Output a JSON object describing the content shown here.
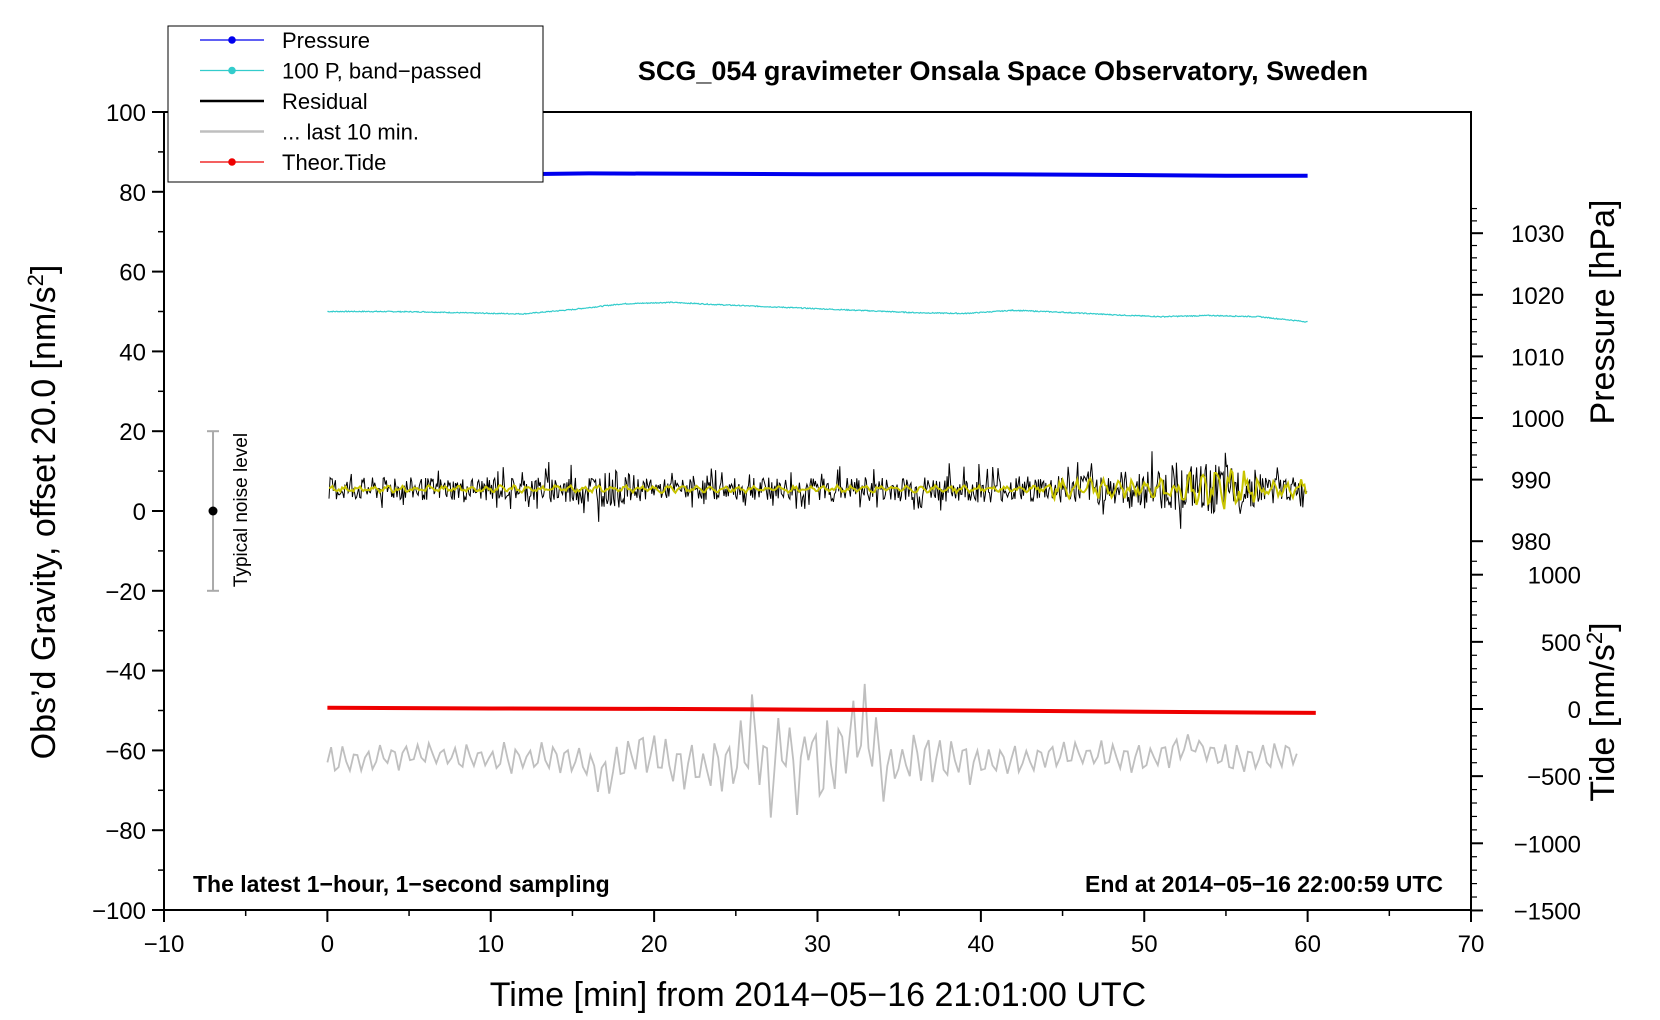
{
  "chart_data": {
    "type": "line",
    "title": "SCG_054 gravimeter Onsala Space Observatory, Sweden",
    "xlabel": "Time [min] from 2014−05−16 21:01:00 UTC",
    "ylabel_main": "Obs’d Gravity, offset 20.0 [nm/s",
    "ylabel_main_sup": "2",
    "ylabel_main_end": "]",
    "ylabel_pressure": "Pressure [hPa]",
    "ylabel_tide": "Tide [nm/s",
    "ylabel_tide_sup": "2",
    "ylabel_tide_end": "]",
    "xlim": [
      -10,
      70
    ],
    "ylim": [
      -100,
      100
    ],
    "x_ticks": [
      -10,
      0,
      10,
      20,
      30,
      40,
      50,
      60,
      70
    ],
    "x_tick_labels": [
      "−10",
      "0",
      "10",
      "20",
      "30",
      "40",
      "50",
      "60",
      "70"
    ],
    "y_ticks": [
      -100,
      -80,
      -60,
      -40,
      -20,
      0,
      20,
      40,
      60,
      80,
      100
    ],
    "y_tick_labels": [
      "−100",
      "−80",
      "−60",
      "−40",
      "−20",
      "0",
      "20",
      "40",
      "60",
      "80",
      "100"
    ],
    "pressure_axis": {
      "ticks": [
        980,
        990,
        1000,
        1010,
        1020,
        1030
      ],
      "tick_labels": [
        "980",
        "990",
        "1000",
        "1010",
        "1020",
        "1030"
      ]
    },
    "tide_axis": {
      "ticks": [
        1000,
        500,
        0,
        -500,
        -1000,
        -1500
      ],
      "tick_labels": [
        "1000",
        "500",
        "0",
        "−500",
        "−1000",
        "−1500"
      ]
    },
    "annotations": {
      "bottom_left": "The latest 1−hour, 1−second sampling",
      "bottom_right": "End at 2014−05−16 22:00:59 UTC",
      "noise_label": "Typical noise level"
    },
    "noise_bar": {
      "x": -7,
      "center": 0,
      "low": -20,
      "high": 20
    },
    "legend": {
      "position": "top-left",
      "entries": [
        {
          "label": "Pressure",
          "color": "#0000ee",
          "marker": "dot"
        },
        {
          "label": "100 P, band−passed",
          "color": "#33cccc",
          "marker": "dot"
        },
        {
          "label": "Residual",
          "color": "#000000",
          "marker": "none"
        },
        {
          "label": "... last 10 min.",
          "color": "#bfbfbf",
          "marker": "none"
        },
        {
          "label": "Theor.Tide",
          "color": "#ee0000",
          "marker": "dot"
        }
      ]
    },
    "series": [
      {
        "name": "Pressure",
        "color": "#0000ee",
        "x": [
          0,
          10,
          16,
          23,
          30,
          40,
          49,
          55,
          60
        ],
        "y": [
          84.3,
          84.3,
          84.6,
          84.5,
          84.4,
          84.4,
          84.2,
          84.0,
          84.0
        ]
      },
      {
        "name": "100 P, band−passed",
        "color": "#33cccc",
        "x": [
          0,
          3,
          6,
          9,
          12,
          15,
          18,
          21,
          24,
          27,
          30,
          33,
          36,
          39,
          42,
          45,
          48,
          51,
          54,
          57,
          60
        ],
        "y": [
          50.0,
          50.0,
          49.9,
          49.6,
          49.4,
          50.5,
          51.9,
          52.3,
          51.7,
          51.2,
          50.7,
          50.2,
          49.7,
          49.5,
          50.3,
          49.8,
          49.2,
          48.7,
          49.0,
          48.7,
          47.4
        ]
      },
      {
        "name": "Residual",
        "color": "#000000",
        "x": [
          0,
          10,
          17.8,
          20,
          40,
          44,
          48,
          52,
          54.5,
          55.5,
          57,
          60
        ],
        "y_center": [
          5.5,
          5.5,
          5.5,
          5.5,
          5.5,
          5.5,
          5.5,
          5.5,
          5.5,
          5.5,
          5.5,
          5.5
        ],
        "y_min": [
          0,
          0,
          -5,
          1,
          0,
          0,
          -1,
          -4,
          -9,
          -7,
          0,
          1
        ],
        "y_max": [
          12,
          12,
          13,
          11,
          13,
          13,
          15,
          18,
          20,
          17,
          15,
          11
        ]
      },
      {
        "name": "... last 10 min.",
        "color": "#bfbfbf",
        "x": [
          0,
          5,
          10,
          15,
          17,
          19,
          22,
          25,
          26,
          27,
          28,
          29,
          29.5,
          30,
          31,
          33,
          34,
          36,
          40,
          45,
          50,
          53,
          55,
          60
        ],
        "y": [
          -64,
          -60,
          -62,
          -62,
          -71,
          -59,
          -67,
          -64,
          -47,
          -74,
          -50,
          -76,
          -47,
          -70,
          -62,
          -48,
          -70,
          -60,
          -65,
          -60,
          -62,
          -55,
          -63,
          -60
        ]
      },
      {
        "name": "Theor.Tide",
        "color": "#ee0000",
        "x": [
          0,
          10,
          20,
          30,
          40,
          50,
          60.5
        ],
        "y": [
          -49.3,
          -49.5,
          -49.6,
          -49.8,
          -50.0,
          -50.3,
          -50.6
        ]
      }
    ]
  }
}
